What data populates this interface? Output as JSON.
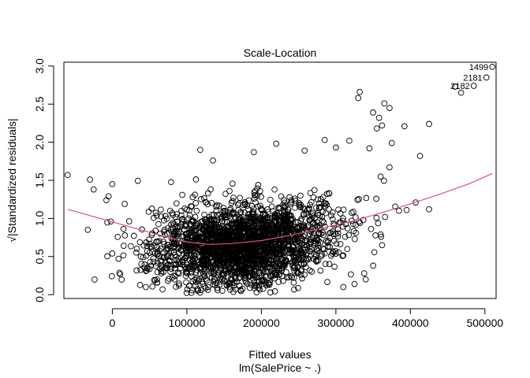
{
  "chart_data": {
    "type": "scatter",
    "title": "Scale-Location",
    "xlabel": "Fitted values",
    "xlabel2": "lm(SalePrice ~ .)",
    "ylabel": "√|Standardized residuals|",
    "xlim": [
      -65000,
      515000
    ],
    "ylim": [
      -0.05,
      3.05
    ],
    "xticks": [
      0,
      100000,
      200000,
      300000,
      400000,
      500000
    ],
    "xtick_labels": [
      "0",
      "100000",
      "200000",
      "300000",
      "400000",
      "500000"
    ],
    "yticks": [
      0.0,
      0.5,
      1.0,
      1.5,
      2.0,
      2.5,
      3.0
    ],
    "ytick_labels": [
      "0.0",
      "0.5",
      "1.0",
      "1.5",
      "2.0",
      "2.5",
      "3.0"
    ],
    "grid": false,
    "point_color": "#000000",
    "smooth_color": "#DF536B",
    "labeled_points": [
      {
        "label": "1499",
        "x": 510000,
        "y": 2.99
      },
      {
        "label": "2181",
        "x": 502000,
        "y": 2.85
      },
      {
        "label": "2182",
        "x": 485000,
        "y": 2.74
      }
    ],
    "outlier_points": [
      {
        "x": -60000,
        "y": 1.57
      },
      {
        "x": -30000,
        "y": 1.51
      },
      {
        "x": -25000,
        "y": 1.38
      },
      {
        "x": -5000,
        "y": 1.29
      },
      {
        "x": -8000,
        "y": 1.24
      },
      {
        "x": 0,
        "y": 1.45
      },
      {
        "x": -2000,
        "y": 0.96
      },
      {
        "x": 0,
        "y": 0.54
      },
      {
        "x": 118000,
        "y": 1.9
      },
      {
        "x": 135000,
        "y": 1.76
      },
      {
        "x": 190000,
        "y": 1.87
      },
      {
        "x": 220000,
        "y": 1.98
      },
      {
        "x": 258000,
        "y": 1.89
      },
      {
        "x": 285000,
        "y": 2.03
      },
      {
        "x": 300000,
        "y": 1.93
      },
      {
        "x": 318000,
        "y": 2.02
      },
      {
        "x": 330000,
        "y": 2.58
      },
      {
        "x": 332000,
        "y": 2.66
      },
      {
        "x": 345000,
        "y": 1.92
      },
      {
        "x": 350000,
        "y": 2.39
      },
      {
        "x": 355000,
        "y": 2.18
      },
      {
        "x": 358000,
        "y": 2.32
      },
      {
        "x": 362000,
        "y": 2.22
      },
      {
        "x": 365000,
        "y": 2.51
      },
      {
        "x": 372000,
        "y": 2.45
      },
      {
        "x": 375000,
        "y": 1.99
      },
      {
        "x": 392000,
        "y": 2.21
      },
      {
        "x": 372000,
        "y": 1.67
      },
      {
        "x": 360000,
        "y": 1.55
      },
      {
        "x": 413000,
        "y": 1.82
      },
      {
        "x": 425000,
        "y": 2.24
      },
      {
        "x": 407000,
        "y": 1.21
      },
      {
        "x": 425000,
        "y": 1.12
      },
      {
        "x": 395000,
        "y": 1.11
      },
      {
        "x": 460000,
        "y": 2.73
      },
      {
        "x": 468000,
        "y": 2.65
      },
      {
        "x": 310000,
        "y": 0.1
      },
      {
        "x": 325000,
        "y": 0.14
      },
      {
        "x": 340000,
        "y": 0.2
      },
      {
        "x": 338000,
        "y": 0.28
      },
      {
        "x": 360000,
        "y": 0.79
      },
      {
        "x": 362000,
        "y": 0.65
      },
      {
        "x": 350000,
        "y": 0.38
      },
      {
        "x": 366000,
        "y": 1.02
      },
      {
        "x": 60000,
        "y": 0.2
      },
      {
        "x": 45000,
        "y": 0.1
      }
    ],
    "smooth_line": [
      {
        "x": -60000,
        "y": 1.12
      },
      {
        "x": -20000,
        "y": 1.01
      },
      {
        "x": 20000,
        "y": 0.9
      },
      {
        "x": 60000,
        "y": 0.79
      },
      {
        "x": 100000,
        "y": 0.69
      },
      {
        "x": 130000,
        "y": 0.66
      },
      {
        "x": 160000,
        "y": 0.67
      },
      {
        "x": 200000,
        "y": 0.71
      },
      {
        "x": 240000,
        "y": 0.78
      },
      {
        "x": 280000,
        "y": 0.87
      },
      {
        "x": 320000,
        "y": 0.96
      },
      {
        "x": 360000,
        "y": 1.07
      },
      {
        "x": 400000,
        "y": 1.19
      },
      {
        "x": 440000,
        "y": 1.32
      },
      {
        "x": 480000,
        "y": 1.46
      },
      {
        "x": 510000,
        "y": 1.59
      }
    ]
  }
}
